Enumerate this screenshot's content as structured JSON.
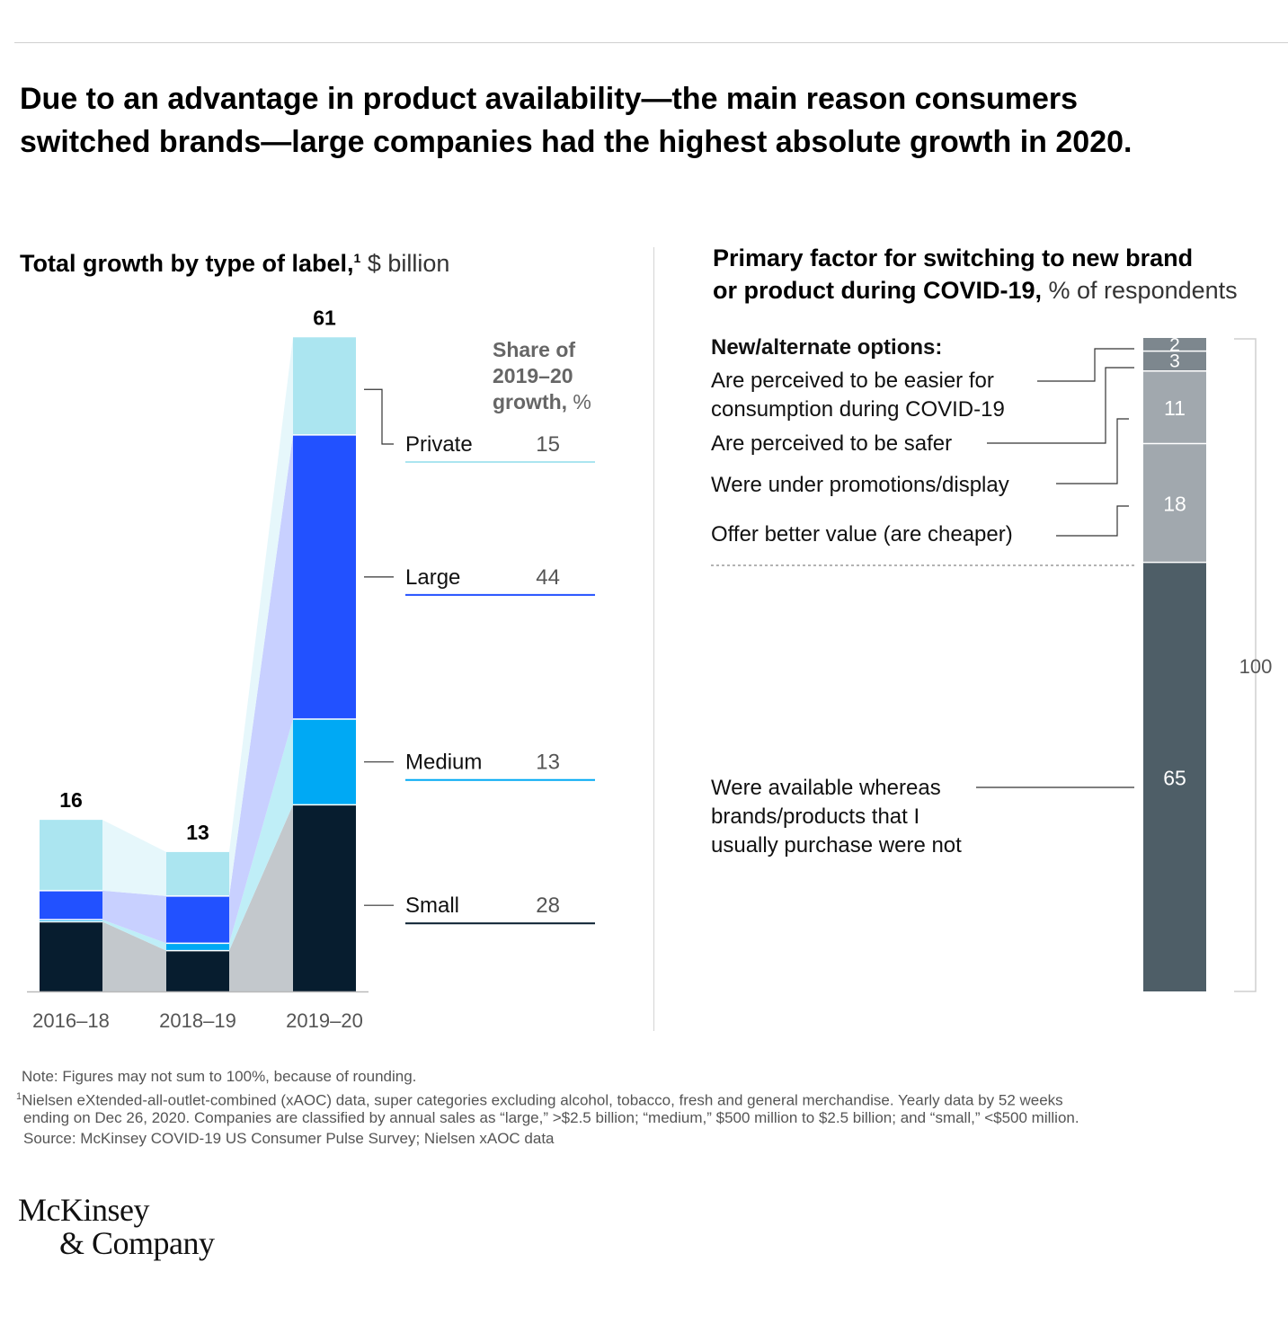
{
  "headline_line1": "Due to an advantage in product availability—the main reason consumers",
  "headline_line2": "switched brands—large companies had the highest absolute growth in 2020.",
  "left_title_bold": "Total growth by type of label,",
  "left_title_sup": "1",
  "left_title_unit": " $ billion",
  "right_title_line1": "Primary factor for switching to new brand",
  "right_title_line2_bold": "or product during COVID-19,",
  "right_title_line2_unit": " % of respondents",
  "share_header": [
    "Share of",
    "2019–20",
    "growth,"
  ],
  "share_header_unit": " %",
  "options_header": "New/alternate options:",
  "chart_data": [
    {
      "type": "bar",
      "stacked": true,
      "unit": "$ billion",
      "categories": [
        "2016–18",
        "2018–19",
        "2019–20"
      ],
      "totals": [
        16,
        13,
        61
      ],
      "series": [
        {
          "name": "Small",
          "values": [
            6.5,
            3.8,
            17.4
          ],
          "color": "#071d2f",
          "share": 28
        },
        {
          "name": "Medium",
          "values": [
            0.2,
            0.7,
            8.0
          ],
          "color": "#00a9f4",
          "share": 13
        },
        {
          "name": "Large",
          "values": [
            2.7,
            4.4,
            26.5
          ],
          "color": "#2251ff",
          "share": 44
        },
        {
          "name": "Private",
          "values": [
            6.6,
            4.1,
            9.1
          ],
          "color": "#abe5f0",
          "share": 15
        }
      ],
      "band_colors": [
        "#c3c8cc",
        "#bfeef7",
        "#c8d0ff",
        "#e6f7fb"
      ]
    },
    {
      "type": "bar",
      "stacked": true,
      "unit": "% of respondents",
      "total": 100,
      "segments": [
        {
          "label": "Were available whereas brands/products that I usually purchase were not",
          "label_lines": [
            "Were available whereas",
            "brands/products that I",
            "usually purchase were not"
          ],
          "value": 65,
          "color": "#4e5e67"
        },
        {
          "label": "Offer better value (are cheaper)",
          "label_lines": [
            "Offer better value (are cheaper)"
          ],
          "value": 18,
          "color": "#a1a8ae"
        },
        {
          "label": "Were under promotions/display",
          "label_lines": [
            "Were under promotions/display"
          ],
          "value": 11,
          "color": "#a1a8ae"
        },
        {
          "label": "Are perceived to be safer",
          "label_lines": [
            "Are perceived to be safer"
          ],
          "value": 3,
          "color": "#7d878e"
        },
        {
          "label": "Are perceived to be easier for consumption during COVID-19",
          "label_lines": [
            "Are perceived to be easier for",
            "consumption during COVID-19"
          ],
          "value": 2,
          "color": "#7d878e"
        }
      ]
    }
  ],
  "notes": [
    "Note: Figures may not sum to 100%, because of rounding.",
    "Nielsen eXtended-all-outlet-combined (xAOC) data, super categories excluding alcohol, tobacco, fresh and general merchandise. Yearly data by 52 weeks",
    "ending on Dec 26, 2020. Companies are classified by annual sales as “large,” >$2.5 billion; “medium,” $500 million to $2.5 billion; and “small,” <$500 million.",
    "Source: McKinsey COVID-19 US Consumer Pulse Survey; Nielsen xAOC data"
  ],
  "footnote_marker": "1",
  "logo_line1": "McKinsey",
  "logo_line2": "& Company"
}
